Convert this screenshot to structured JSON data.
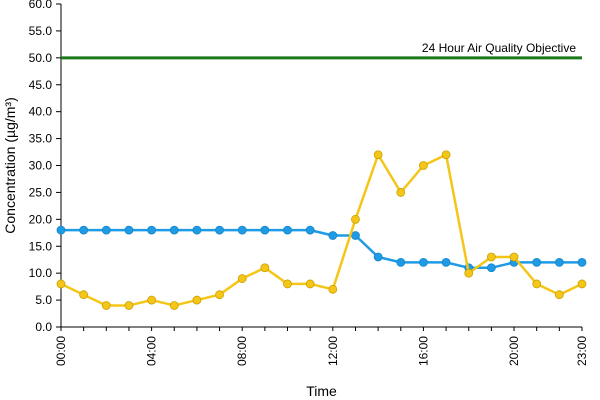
{
  "chart_data": {
    "type": "line",
    "title": "",
    "xlabel": "Time",
    "ylabel": "Concentration (µg/m³)",
    "ylim": [
      0,
      60
    ],
    "y_ticks": [
      "0.0",
      "5.0",
      "10.0",
      "15.0",
      "20.0",
      "25.0",
      "30.0",
      "35.0",
      "40.0",
      "45.0",
      "50.0",
      "55.0",
      "60.0"
    ],
    "x_ticks": [
      {
        "hour": 0,
        "label": "00:00"
      },
      {
        "hour": 4,
        "label": "04:00"
      },
      {
        "hour": 8,
        "label": "08:00"
      },
      {
        "hour": 12,
        "label": "12:00"
      },
      {
        "hour": 16,
        "label": "16:00"
      },
      {
        "hour": 20,
        "label": "20:00"
      },
      {
        "hour": 23,
        "label": "23:00"
      }
    ],
    "x": [
      0,
      1,
      2,
      3,
      4,
      5,
      6,
      7,
      8,
      9,
      10,
      11,
      12,
      13,
      14,
      15,
      16,
      17,
      18,
      19,
      20,
      21,
      22,
      23
    ],
    "series": [
      {
        "color": "#1f9be6",
        "values": [
          18,
          18,
          18,
          18,
          18,
          18,
          18,
          18,
          18,
          18,
          18,
          18,
          17,
          17,
          13,
          12,
          12,
          12,
          11,
          11,
          12,
          12,
          12,
          12
        ]
      },
      {
        "color": "#f5c518",
        "values": [
          8,
          6,
          4,
          4,
          5,
          4,
          5,
          6,
          9,
          11,
          8,
          8,
          7,
          20,
          32,
          25,
          30,
          32,
          10,
          13,
          13,
          8,
          6,
          8
        ]
      }
    ],
    "reference_line": {
      "value": 50,
      "label": "24 Hour Air Quality Objective",
      "color": "#1a7a1a"
    },
    "grid": false,
    "legend": "none"
  }
}
